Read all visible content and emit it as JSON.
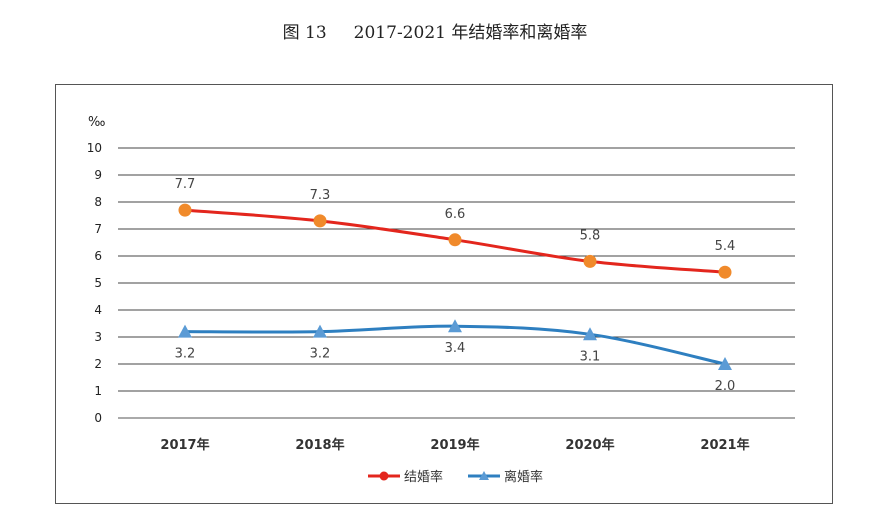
{
  "figure": {
    "title": "图 13     2017-2021 年结婚率和离婚率"
  },
  "chart_data": {
    "type": "line",
    "title": "图 13     2017-2021 年结婚率和离婚率",
    "categories": [
      "2017年",
      "2018年",
      "2019年",
      "2020年",
      "2021年"
    ],
    "series": [
      {
        "name": "结婚率",
        "values": [
          7.7,
          7.3,
          6.6,
          5.8,
          5.4
        ],
        "labels": [
          "7.7",
          "7.3",
          "6.6",
          "5.8",
          "5.4"
        ],
        "color": "#e3261d",
        "marker_color": "#f08a2b",
        "marker": "circle",
        "label_position": "above"
      },
      {
        "name": "离婚率",
        "values": [
          3.2,
          3.2,
          3.4,
          3.1,
          2.0
        ],
        "labels": [
          "3.2",
          "3.2",
          "3.4",
          "3.1",
          "2.0"
        ],
        "color": "#2e7fc0",
        "marker_color": "#5b9bd5",
        "marker": "triangle",
        "label_position": "below"
      }
    ],
    "yunit": "‰",
    "ylim": [
      0,
      10
    ],
    "yticks": [
      0,
      1,
      2,
      3,
      4,
      5,
      6,
      7,
      8,
      9,
      10
    ],
    "grid": true,
    "legend": "bottom-center"
  }
}
